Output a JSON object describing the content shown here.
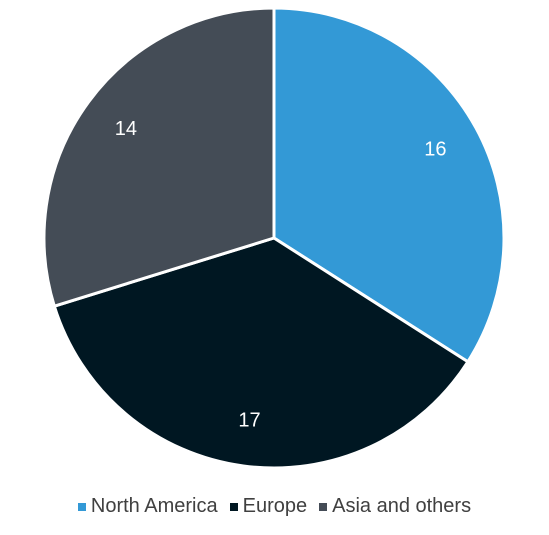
{
  "chart_data": {
    "type": "pie",
    "categories": [
      "North America",
      "Europe",
      "Asia and others"
    ],
    "values": [
      16,
      17,
      14
    ],
    "colors": [
      "#3399d6",
      "#001722",
      "#444c56"
    ],
    "start_angle_deg": 0,
    "direction": "clockwise",
    "slice_border_color": "#ffffff",
    "legend_position": "bottom",
    "data_labels": [
      "16",
      "17",
      "14"
    ]
  }
}
